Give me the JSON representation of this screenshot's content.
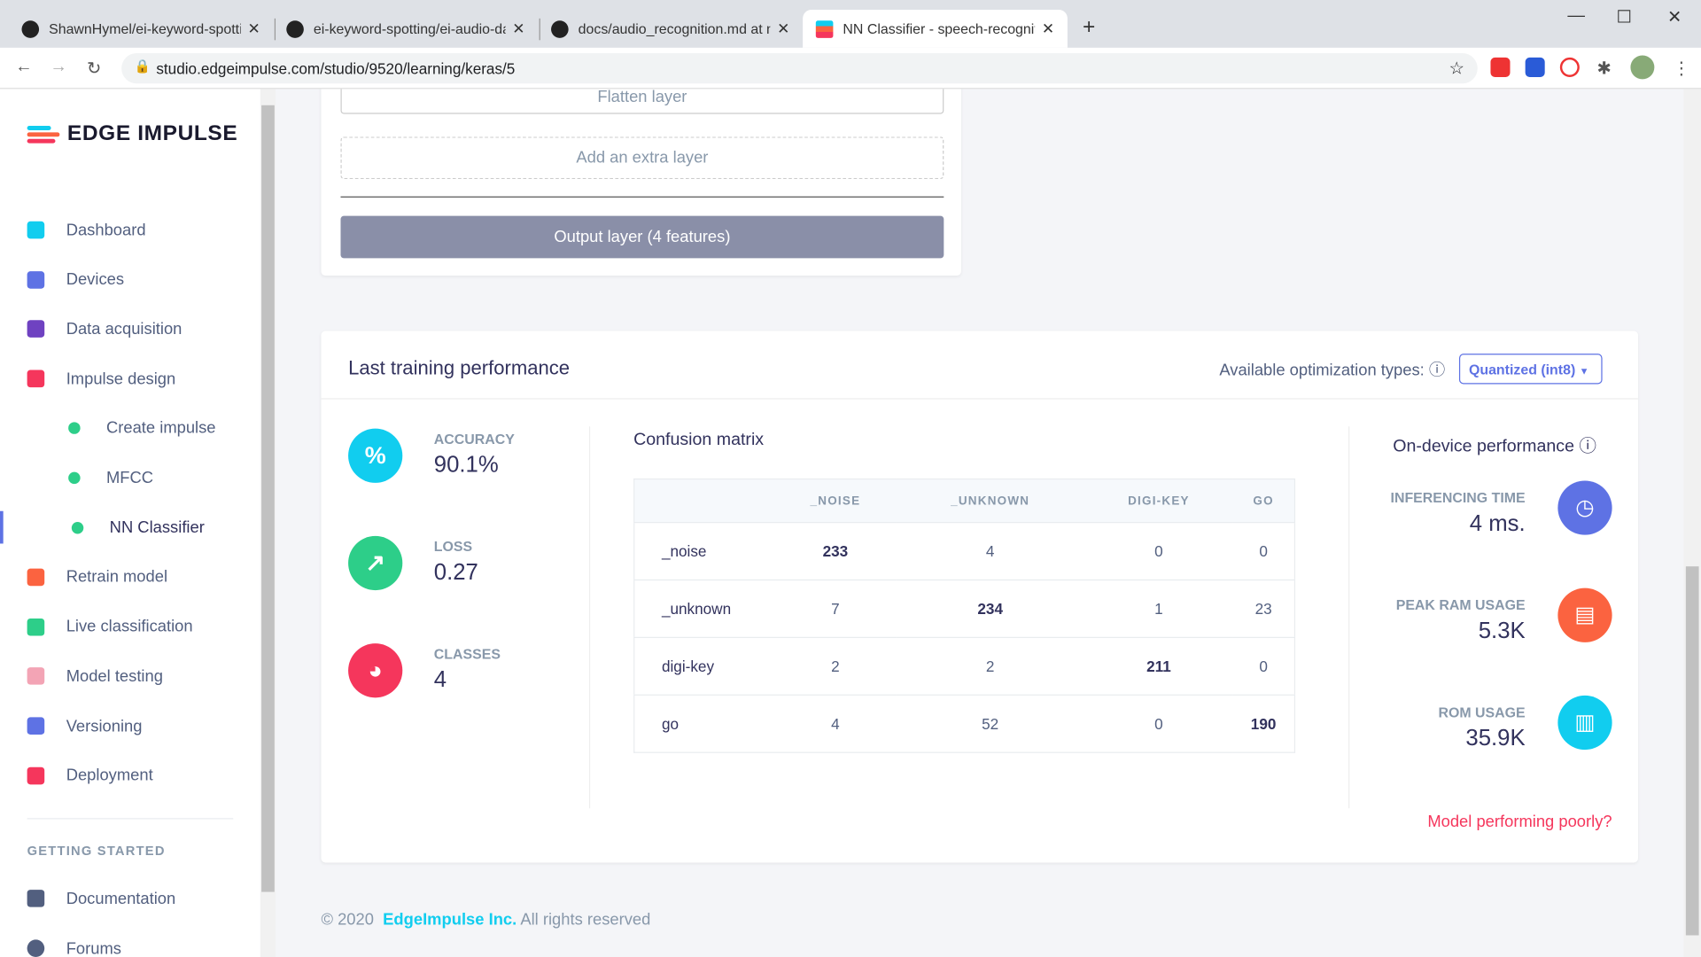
{
  "browser": {
    "tabs": [
      {
        "title": "ShawnHymel/ei-keyword-spotting"
      },
      {
        "title": "ei-keyword-spotting/ei-audio-da"
      },
      {
        "title": "docs/audio_recognition.md at m"
      },
      {
        "title": "NN Classifier - speech-recognition"
      }
    ],
    "url": "studio.edgeimpulse.com/studio/9520/learning/keras/5"
  },
  "sidebar": {
    "brand": "EDGE IMPULSE",
    "items": [
      {
        "label": "Dashboard",
        "color": "#11cdef"
      },
      {
        "label": "Devices",
        "color": "#5e72e4"
      },
      {
        "label": "Data acquisition",
        "color": "#6f42c1"
      },
      {
        "label": "Impulse design",
        "color": "#f5365c"
      },
      {
        "label": "Create impulse"
      },
      {
        "label": "MFCC"
      },
      {
        "label": "NN Classifier"
      },
      {
        "label": "Retrain model",
        "color": "#fb6340"
      },
      {
        "label": "Live classification",
        "color": "#2dce89"
      },
      {
        "label": "Model testing",
        "color": "#f3a4b5"
      },
      {
        "label": "Versioning",
        "color": "#5e72e4"
      },
      {
        "label": "Deployment",
        "color": "#f5365c"
      }
    ],
    "section": "GETTING STARTED",
    "help": [
      {
        "label": "Documentation"
      },
      {
        "label": "Forums"
      }
    ]
  },
  "layers": {
    "flatten": "Flatten layer",
    "add": "Add an extra layer",
    "output": "Output layer (4 features)"
  },
  "perf": {
    "title": "Last training performance",
    "opt_label": "Available optimization types:",
    "opt_value": "Quantized (int8)",
    "metrics": [
      {
        "label": "Accuracy",
        "value": "90.1%",
        "icon": "percent-icon",
        "color": "#11cdef"
      },
      {
        "label": "Loss",
        "value": "0.27",
        "icon": "chart-line-icon",
        "color": "#2dce89"
      },
      {
        "label": "Classes",
        "value": "4",
        "icon": "pie-chart-icon",
        "color": "#f5365c"
      }
    ],
    "cm": {
      "title": "Confusion matrix",
      "cols": [
        "_NOISE",
        "_UNKNOWN",
        "DIGI-KEY",
        "GO"
      ],
      "rows": [
        {
          "label": "_noise",
          "values": [
            "233",
            "4",
            "0",
            "0"
          ]
        },
        {
          "label": "_unknown",
          "values": [
            "7",
            "234",
            "1",
            "23"
          ]
        },
        {
          "label": "digi-key",
          "values": [
            "2",
            "2",
            "211",
            "0"
          ]
        },
        {
          "label": "go",
          "values": [
            "4",
            "52",
            "0",
            "190"
          ]
        }
      ]
    },
    "device": {
      "title": "On-device performance",
      "items": [
        {
          "label": "INFERENCING TIME",
          "value": "4 ms.",
          "icon": "clock-icon",
          "color": "#5e72e4"
        },
        {
          "label": "PEAK RAM USAGE",
          "value": "5.3K",
          "icon": "memory-icon",
          "color": "#fb6340"
        },
        {
          "label": "ROM USAGE",
          "value": "35.9K",
          "icon": "chip-icon",
          "color": "#11cdef"
        }
      ]
    },
    "poor": "Model performing poorly?"
  },
  "footer": {
    "copy": "© 2020",
    "company": "EdgeImpulse Inc.",
    "rights": "All rights reserved"
  }
}
